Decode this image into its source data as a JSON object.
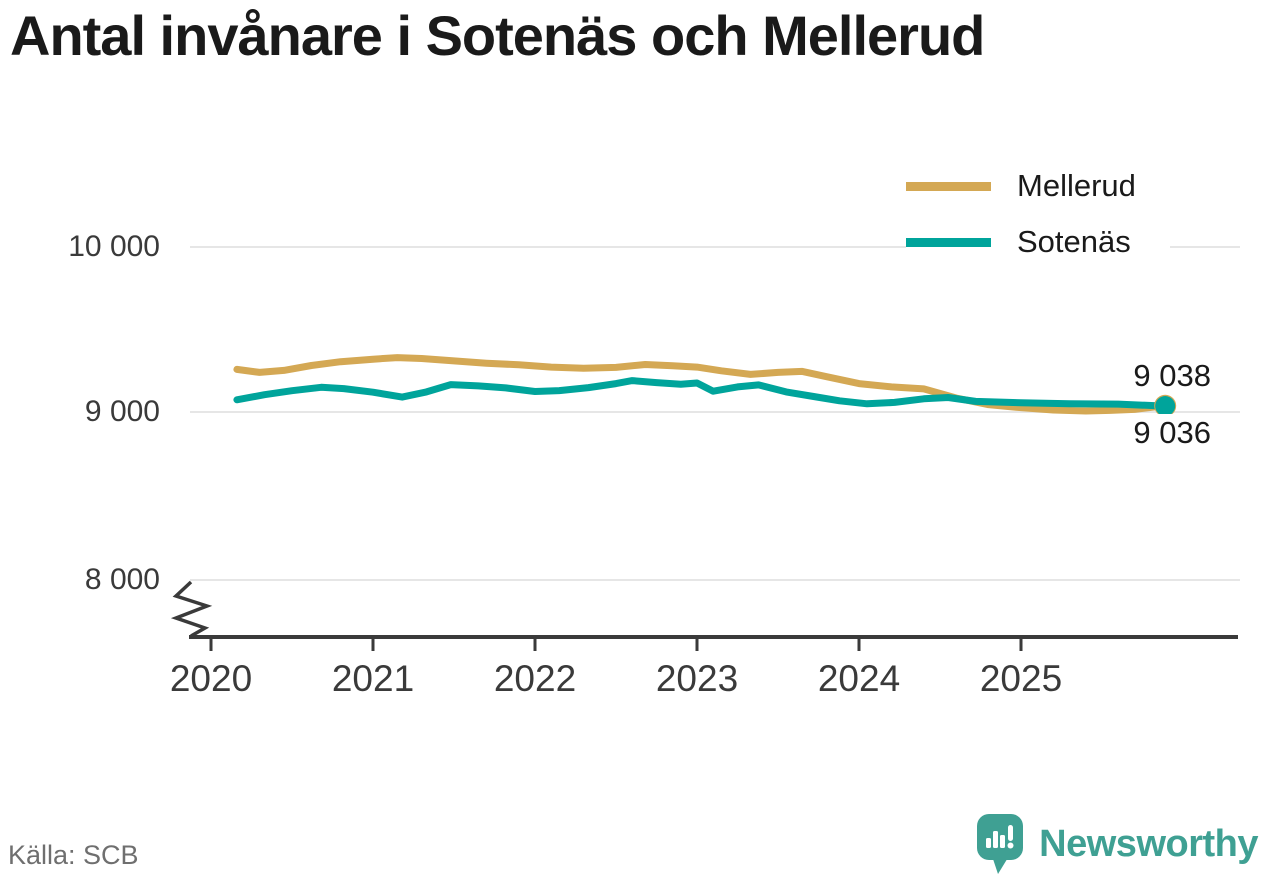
{
  "title": "Antal invånare i Sotenäs och Mellerud",
  "source": "Källa: SCB",
  "brand": {
    "name": "Newsworthy",
    "color": "#3FA093"
  },
  "colors": {
    "mellerud": "#D4A854",
    "sotenas": "#00A49B",
    "grid": "#E6E6E6",
    "axis": "#3A3A3A",
    "text": "#1A1A1A",
    "muted": "#6F6F6F"
  },
  "legend": [
    {
      "label": "Mellerud",
      "color": "#D4A854"
    },
    {
      "label": "Sotenäs",
      "color": "#00A49B"
    }
  ],
  "end_labels": {
    "top": "9 038",
    "bottom": "9 036"
  },
  "chart_data": {
    "type": "line",
    "title": "Antal invånare i Sotenäs och Mellerud",
    "xlabel": "",
    "ylabel": "",
    "grid": "horizontal",
    "legend_position": "top-right",
    "axis_break_below": 8000,
    "ylim": [
      8000,
      10000
    ],
    "x_range": [
      2020.16,
      2025.89
    ],
    "x_ticks": [
      2020,
      2021,
      2022,
      2023,
      2024,
      2025
    ],
    "y_ticks": [
      {
        "label": "10 000",
        "value": 10000
      },
      {
        "label": "9 000",
        "value": 9000
      },
      {
        "label": "8 000",
        "value": 8000
      }
    ],
    "series": [
      {
        "name": "Mellerud",
        "color": "#D4A854",
        "end_value": 9038,
        "end_label": "9 038",
        "points": [
          [
            2020.16,
            9258
          ],
          [
            2020.3,
            9240
          ],
          [
            2020.45,
            9252
          ],
          [
            2020.62,
            9282
          ],
          [
            2020.8,
            9305
          ],
          [
            2021.0,
            9320
          ],
          [
            2021.15,
            9330
          ],
          [
            2021.3,
            9324
          ],
          [
            2021.5,
            9310
          ],
          [
            2021.7,
            9296
          ],
          [
            2021.9,
            9286
          ],
          [
            2022.1,
            9272
          ],
          [
            2022.3,
            9265
          ],
          [
            2022.5,
            9270
          ],
          [
            2022.68,
            9288
          ],
          [
            2022.85,
            9280
          ],
          [
            2023.0,
            9272
          ],
          [
            2023.15,
            9250
          ],
          [
            2023.33,
            9228
          ],
          [
            2023.5,
            9240
          ],
          [
            2023.65,
            9246
          ],
          [
            2023.8,
            9214
          ],
          [
            2024.0,
            9172
          ],
          [
            2024.2,
            9152
          ],
          [
            2024.4,
            9140
          ],
          [
            2024.6,
            9085
          ],
          [
            2024.8,
            9044
          ],
          [
            2025.0,
            9026
          ],
          [
            2025.2,
            9012
          ],
          [
            2025.4,
            9006
          ],
          [
            2025.55,
            9010
          ],
          [
            2025.7,
            9016
          ],
          [
            2025.89,
            9038
          ]
        ]
      },
      {
        "name": "Sotenäs",
        "color": "#00A49B",
        "end_value": 9036,
        "end_label": "9 036",
        "points": [
          [
            2020.16,
            9074
          ],
          [
            2020.33,
            9105
          ],
          [
            2020.5,
            9129
          ],
          [
            2020.68,
            9150
          ],
          [
            2020.82,
            9142
          ],
          [
            2021.0,
            9120
          ],
          [
            2021.18,
            9090
          ],
          [
            2021.33,
            9122
          ],
          [
            2021.48,
            9166
          ],
          [
            2021.65,
            9158
          ],
          [
            2021.82,
            9146
          ],
          [
            2022.0,
            9124
          ],
          [
            2022.15,
            9130
          ],
          [
            2022.33,
            9148
          ],
          [
            2022.5,
            9172
          ],
          [
            2022.6,
            9190
          ],
          [
            2022.75,
            9178
          ],
          [
            2022.9,
            9168
          ],
          [
            2023.0,
            9176
          ],
          [
            2023.1,
            9126
          ],
          [
            2023.25,
            9152
          ],
          [
            2023.38,
            9164
          ],
          [
            2023.55,
            9122
          ],
          [
            2023.72,
            9094
          ],
          [
            2023.88,
            9068
          ],
          [
            2024.05,
            9050
          ],
          [
            2024.22,
            9058
          ],
          [
            2024.4,
            9080
          ],
          [
            2024.55,
            9088
          ],
          [
            2024.72,
            9064
          ],
          [
            2025.0,
            9056
          ],
          [
            2025.3,
            9050
          ],
          [
            2025.6,
            9048
          ],
          [
            2025.89,
            9036
          ]
        ]
      }
    ]
  }
}
